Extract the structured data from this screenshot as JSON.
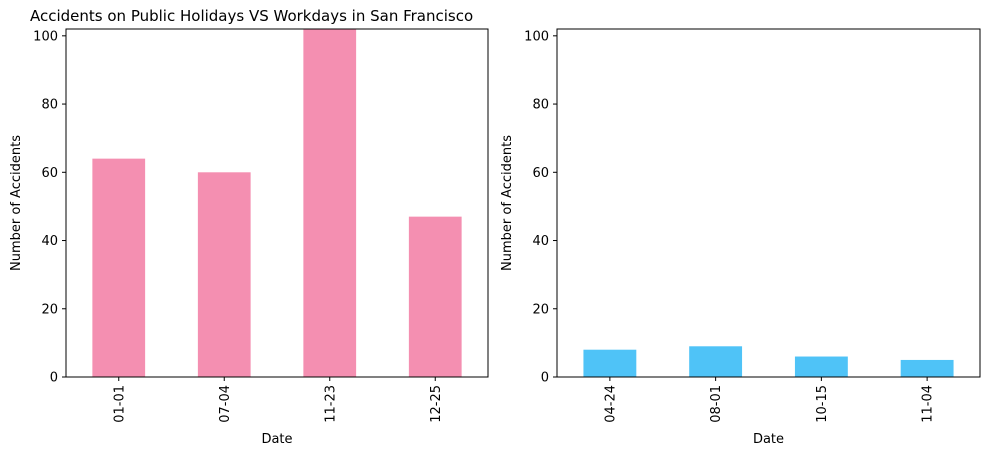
{
  "title": "Accidents on Public Holidays VS Workdays in San Francisco",
  "colors": {
    "holidays": "#F48FB1",
    "workdays": "#4FC3F7"
  },
  "chart_data": [
    {
      "type": "bar",
      "categories": [
        "01-01",
        "07-04",
        "11-23",
        "12-25"
      ],
      "values": [
        64,
        60,
        102,
        47
      ],
      "xlabel": "Date",
      "ylabel": "Number of Accidents",
      "ylim": [
        0,
        102
      ],
      "yticks": [
        0,
        20,
        40,
        60,
        80,
        100
      ],
      "color": "#F48FB1",
      "grid": false
    },
    {
      "type": "bar",
      "categories": [
        "04-24",
        "08-01",
        "10-15",
        "11-04"
      ],
      "values": [
        8,
        9,
        6,
        5
      ],
      "xlabel": "Date",
      "ylabel": "Number of Accidents",
      "ylim": [
        0,
        102
      ],
      "yticks": [
        0,
        20,
        40,
        60,
        80,
        100
      ],
      "color": "#4FC3F7",
      "grid": false
    }
  ]
}
